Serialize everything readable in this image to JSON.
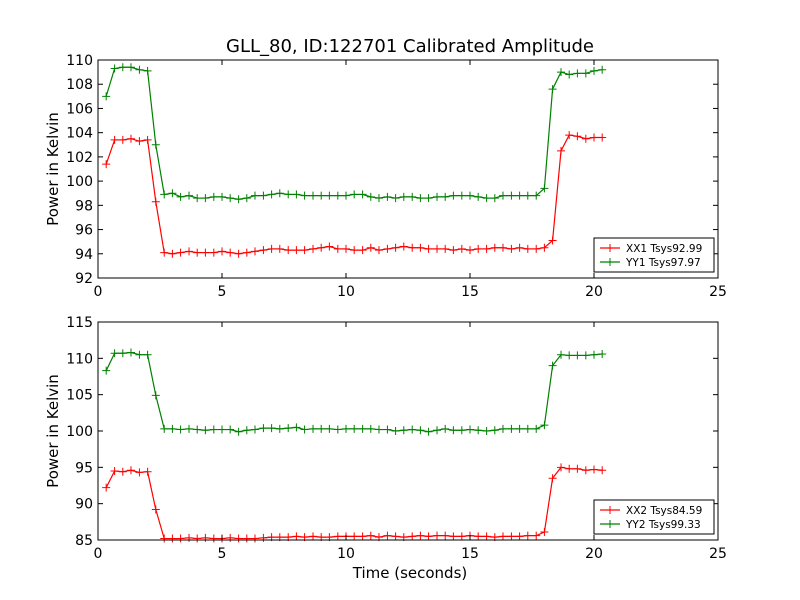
{
  "chart_data": {
    "title": "GLL_80, ID:122701 Calibrated Amplitude",
    "xlabel": "Time (seconds)",
    "panels": [
      {
        "type": "line",
        "ylabel": "Power in Kelvin",
        "xlim": [
          0,
          25
        ],
        "ylim": [
          92,
          110
        ],
        "xticks": [
          0,
          5,
          10,
          15,
          20,
          25
        ],
        "yticks": [
          92,
          94,
          96,
          98,
          100,
          102,
          104,
          106,
          108,
          110
        ],
        "legend_position": "lower-right",
        "series": [
          {
            "name": "XX1 Tsys92.99",
            "color": "#ff0000",
            "x": [
              0.33,
              0.67,
              1.0,
              1.33,
              1.67,
              2.0,
              2.33,
              2.67,
              3.0,
              3.33,
              3.67,
              4.0,
              4.33,
              4.67,
              5.0,
              5.33,
              5.67,
              6.0,
              6.33,
              6.67,
              7.0,
              7.33,
              7.67,
              8.0,
              8.33,
              8.67,
              9.0,
              9.33,
              9.67,
              10.0,
              10.33,
              10.67,
              11.0,
              11.33,
              11.67,
              12.0,
              12.33,
              12.67,
              13.0,
              13.33,
              13.67,
              14.0,
              14.33,
              14.67,
              15.0,
              15.33,
              15.67,
              16.0,
              16.33,
              16.67,
              17.0,
              17.33,
              17.67,
              18.0,
              18.33,
              18.67,
              19.0,
              19.33,
              19.67,
              20.0,
              20.33
            ],
            "y": [
              101.4,
              103.4,
              103.4,
              103.5,
              103.3,
              103.4,
              98.3,
              94.1,
              94.0,
              94.1,
              94.2,
              94.1,
              94.1,
              94.1,
              94.2,
              94.1,
              94.0,
              94.1,
              94.2,
              94.3,
              94.4,
              94.4,
              94.3,
              94.3,
              94.3,
              94.4,
              94.5,
              94.6,
              94.4,
              94.4,
              94.3,
              94.3,
              94.5,
              94.3,
              94.4,
              94.5,
              94.6,
              94.5,
              94.5,
              94.4,
              94.4,
              94.4,
              94.3,
              94.4,
              94.3,
              94.4,
              94.4,
              94.5,
              94.5,
              94.4,
              94.5,
              94.4,
              94.4,
              94.5,
              95.1,
              102.5,
              103.8,
              103.7,
              103.5,
              103.6,
              103.6
            ]
          },
          {
            "name": "YY1 Tsys97.97",
            "color": "#008000",
            "x": [
              0.33,
              0.67,
              1.0,
              1.33,
              1.67,
              2.0,
              2.33,
              2.67,
              3.0,
              3.33,
              3.67,
              4.0,
              4.33,
              4.67,
              5.0,
              5.33,
              5.67,
              6.0,
              6.33,
              6.67,
              7.0,
              7.33,
              7.67,
              8.0,
              8.33,
              8.67,
              9.0,
              9.33,
              9.67,
              10.0,
              10.33,
              10.67,
              11.0,
              11.33,
              11.67,
              12.0,
              12.33,
              12.67,
              13.0,
              13.33,
              13.67,
              14.0,
              14.33,
              14.67,
              15.0,
              15.33,
              15.67,
              16.0,
              16.33,
              16.67,
              17.0,
              17.33,
              17.67,
              18.0,
              18.33,
              18.67,
              19.0,
              19.33,
              19.67,
              20.0,
              20.33
            ],
            "y": [
              107.0,
              109.3,
              109.4,
              109.4,
              109.2,
              109.1,
              103.0,
              98.9,
              99.0,
              98.7,
              98.8,
              98.6,
              98.6,
              98.7,
              98.7,
              98.6,
              98.5,
              98.6,
              98.8,
              98.8,
              98.9,
              99.0,
              98.9,
              98.9,
              98.8,
              98.8,
              98.8,
              98.8,
              98.8,
              98.8,
              98.9,
              98.9,
              98.7,
              98.6,
              98.7,
              98.6,
              98.7,
              98.7,
              98.6,
              98.6,
              98.7,
              98.7,
              98.8,
              98.8,
              98.8,
              98.7,
              98.6,
              98.6,
              98.8,
              98.8,
              98.8,
              98.8,
              98.8,
              99.4,
              107.6,
              109.0,
              108.8,
              108.9,
              108.9,
              109.1,
              109.2
            ]
          }
        ]
      },
      {
        "type": "line",
        "ylabel": "Power in Kelvin",
        "xlim": [
          0,
          25
        ],
        "ylim": [
          85,
          115
        ],
        "xticks": [
          0,
          5,
          10,
          15,
          20,
          25
        ],
        "yticks": [
          85,
          90,
          95,
          100,
          105,
          110,
          115
        ],
        "legend_position": "lower-right",
        "series": [
          {
            "name": "XX2 Tsys84.59",
            "color": "#ff0000",
            "x": [
              0.33,
              0.67,
              1.0,
              1.33,
              1.67,
              2.0,
              2.33,
              2.67,
              3.0,
              3.33,
              3.67,
              4.0,
              4.33,
              4.67,
              5.0,
              5.33,
              5.67,
              6.0,
              6.33,
              6.67,
              7.0,
              7.33,
              7.67,
              8.0,
              8.33,
              8.67,
              9.0,
              9.33,
              9.67,
              10.0,
              10.33,
              10.67,
              11.0,
              11.33,
              11.67,
              12.0,
              12.33,
              12.67,
              13.0,
              13.33,
              13.67,
              14.0,
              14.33,
              14.67,
              15.0,
              15.33,
              15.67,
              16.0,
              16.33,
              16.67,
              17.0,
              17.33,
              17.67,
              18.0,
              18.33,
              18.67,
              19.0,
              19.33,
              19.67,
              20.0,
              20.33
            ],
            "y": [
              92.2,
              94.5,
              94.4,
              94.6,
              94.3,
              94.4,
              89.2,
              85.2,
              85.2,
              85.2,
              85.3,
              85.2,
              85.3,
              85.2,
              85.2,
              85.3,
              85.2,
              85.2,
              85.2,
              85.3,
              85.4,
              85.4,
              85.4,
              85.5,
              85.4,
              85.5,
              85.4,
              85.4,
              85.5,
              85.5,
              85.5,
              85.5,
              85.6,
              85.4,
              85.6,
              85.5,
              85.4,
              85.5,
              85.6,
              85.5,
              85.6,
              85.6,
              85.5,
              85.5,
              85.6,
              85.5,
              85.5,
              85.4,
              85.5,
              85.5,
              85.5,
              85.6,
              85.6,
              86.1,
              93.5,
              95.0,
              94.8,
              94.8,
              94.6,
              94.7,
              94.6
            ]
          },
          {
            "name": "YY2 Tsys99.33",
            "color": "#008000",
            "x": [
              0.33,
              0.67,
              1.0,
              1.33,
              1.67,
              2.0,
              2.33,
              2.67,
              3.0,
              3.33,
              3.67,
              4.0,
              4.33,
              4.67,
              5.0,
              5.33,
              5.67,
              6.0,
              6.33,
              6.67,
              7.0,
              7.33,
              7.67,
              8.0,
              8.33,
              8.67,
              9.0,
              9.33,
              9.67,
              10.0,
              10.33,
              10.67,
              11.0,
              11.33,
              11.67,
              12.0,
              12.33,
              12.67,
              13.0,
              13.33,
              13.67,
              14.0,
              14.33,
              14.67,
              15.0,
              15.33,
              15.67,
              16.0,
              16.33,
              16.67,
              17.0,
              17.33,
              17.67,
              18.0,
              18.33,
              18.67,
              19.0,
              19.33,
              19.67,
              20.0,
              20.33
            ],
            "y": [
              108.3,
              110.7,
              110.7,
              110.8,
              110.5,
              110.5,
              104.9,
              100.3,
              100.3,
              100.2,
              100.3,
              100.2,
              100.1,
              100.2,
              100.2,
              100.2,
              99.9,
              100.1,
              100.2,
              100.4,
              100.4,
              100.3,
              100.4,
              100.5,
              100.2,
              100.3,
              100.3,
              100.3,
              100.2,
              100.3,
              100.3,
              100.3,
              100.3,
              100.2,
              100.2,
              100.0,
              100.1,
              100.2,
              100.1,
              99.9,
              100.1,
              100.3,
              100.1,
              100.1,
              100.2,
              100.1,
              100.0,
              100.1,
              100.3,
              100.3,
              100.3,
              100.3,
              100.3,
              100.8,
              109.0,
              110.5,
              110.4,
              110.4,
              110.4,
              110.5,
              110.6
            ]
          }
        ]
      }
    ]
  }
}
